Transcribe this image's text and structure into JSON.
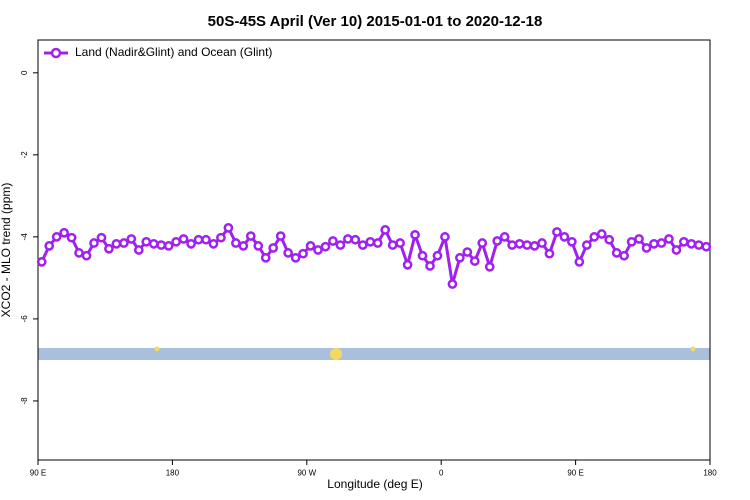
{
  "chart_data": {
    "type": "line",
    "title": "50S-45S April (Ver 10)   2015-01-01 to 2020-12-18",
    "x_label": "Longitude (deg E)",
    "y_label": "XCO2 - MLO trend (ppm)",
    "x": [
      92.5,
      97.5,
      102.5,
      107.5,
      112.5,
      117.5,
      122.5,
      127.5,
      132.5,
      137.5,
      142.5,
      147.5,
      152.5,
      157.5,
      162.5,
      167.5,
      172.5,
      177.5,
      182.5,
      187.5,
      192.5,
      197.5,
      202.5,
      207.5,
      212.5,
      217.5,
      222.5,
      227.5,
      232.5,
      237.5,
      242.5,
      247.5,
      252.5,
      257.5,
      262.5,
      267.5,
      272.5,
      277.5,
      282.5,
      287.5,
      292.5,
      297.5,
      302.5,
      307.5,
      312.5,
      317.5,
      322.5,
      327.5,
      332.5,
      337.5,
      342.5,
      347.5,
      352.5,
      357.5,
      362.5,
      367.5,
      372.5,
      377.5,
      382.5,
      387.5,
      392.5,
      397.5,
      402.5,
      407.5,
      412.5,
      417.5,
      422.5,
      427.5,
      432.5,
      437.5,
      442.5,
      447.5,
      452.5,
      457.5,
      462.5,
      467.5,
      472.5,
      477.5,
      482.5,
      487.5,
      492.5,
      497.5,
      502.5,
      507.5,
      512.5,
      517.5,
      522.5,
      527.5,
      532.5,
      537.5
    ],
    "series": [
      {
        "name": "Land (Nadir&Glint) and Ocean (Glint)",
        "color": "#a020f0",
        "values": [
          -4.61,
          -4.22,
          -4.0,
          -3.9,
          -4.02,
          -4.39,
          -4.46,
          -4.15,
          -4.02,
          -4.29,
          -4.17,
          -4.15,
          -4.05,
          -4.32,
          -4.12,
          -4.17,
          -4.2,
          -4.22,
          -4.12,
          -4.05,
          -4.17,
          -4.07,
          -4.07,
          -4.17,
          -4.02,
          -3.78,
          -4.15,
          -4.22,
          -3.98,
          -4.22,
          -4.51,
          -4.27,
          -3.98,
          -4.39,
          -4.51,
          -4.41,
          -4.22,
          -4.32,
          -4.24,
          -4.1,
          -4.2,
          -4.05,
          -4.07,
          -4.2,
          -4.12,
          -4.15,
          -3.83,
          -4.2,
          -4.15,
          -4.68,
          -3.95,
          -4.46,
          -4.71,
          -4.46,
          -4.0,
          -5.15,
          -4.51,
          -4.37,
          -4.59,
          -4.15,
          -4.73,
          -4.1,
          -4.0,
          -4.2,
          -4.17,
          -4.2,
          -4.22,
          -4.15,
          -4.41,
          -3.88,
          -4.0,
          -4.12,
          -4.61,
          -4.2,
          -4.0,
          -3.93,
          -4.07,
          -4.39,
          -4.46,
          -4.12,
          -4.05,
          -4.27,
          -4.17,
          -4.15,
          -4.05,
          -4.32,
          -4.12,
          -4.17,
          -4.2,
          -4.24
        ]
      }
    ],
    "xlim": [
      90,
      540
    ],
    "xticks": [
      {
        "value": 90,
        "label": "90 E"
      },
      {
        "value": 180,
        "label": "180"
      },
      {
        "value": 270,
        "label": "90 W"
      },
      {
        "value": 360,
        "label": "0"
      },
      {
        "value": 450,
        "label": "90 E"
      },
      {
        "value": 540,
        "label": "180"
      }
    ],
    "ylim": [
      -9.44,
      0.8
    ],
    "yticks": [
      0,
      -2,
      -4,
      -6,
      -8
    ],
    "legend": "top-left"
  }
}
